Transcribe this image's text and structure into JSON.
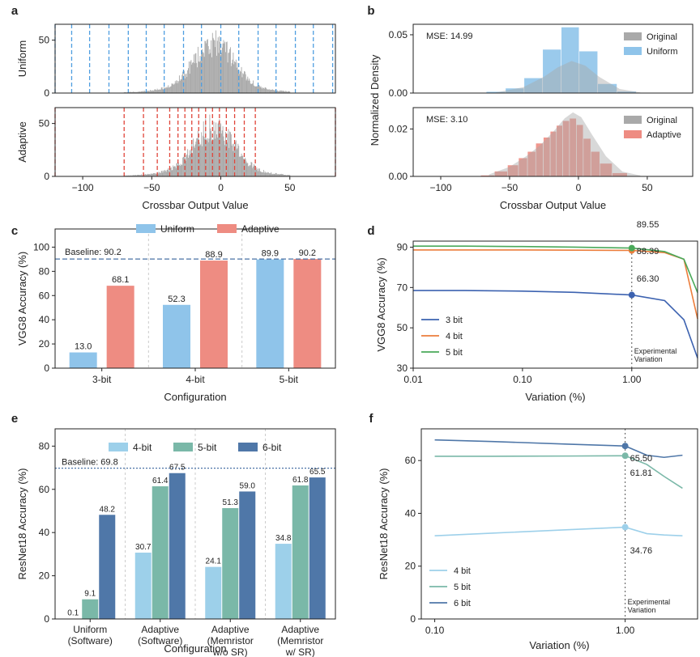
{
  "colors": {
    "uniform": "#4f9ee0",
    "uniform_bar": "#8fc4ea",
    "adaptive": "#e0453a",
    "adaptive_bar": "#ee8c82",
    "original": "#a9a9a9",
    "baseline": "#4a72a6",
    "b3": "#3c62b0",
    "b4": "#ec7d3b",
    "b5": "#4aa95a",
    "rn4": "#9dd0ea",
    "rn5": "#7ab8a8",
    "rn6": "#4f77a8"
  },
  "panels": {
    "a": {
      "label": "a",
      "ylabel_top": "Uniform",
      "ylabel_bottom": "Adaptive",
      "xlabel": "Crossbar Output Value"
    },
    "b": {
      "label": "b",
      "ylabel": "Normalized Density",
      "xlabel": "Crossbar Output Value",
      "mse_top": "MSE: 14.99",
      "mse_bottom": "MSE: 3.10",
      "legend_top": [
        "Original",
        "Uniform"
      ],
      "legend_bottom": [
        "Original",
        "Adaptive"
      ]
    },
    "c": {
      "label": "c",
      "ylabel": "VGG8 Accuracy (%)",
      "xlabel": "Configuration",
      "baseline": "Baseline: 90.2",
      "legend": [
        "Uniform",
        "Adaptive"
      ]
    },
    "d": {
      "label": "d",
      "ylabel": "VGG8 Accuracy (%)",
      "xlabel": "Variation (%)",
      "legend": [
        "3 bit",
        "4 bit",
        "5 bit"
      ],
      "exp_line1": "Experimental",
      "exp_line2": "Variation"
    },
    "e": {
      "label": "e",
      "ylabel": "ResNet18 Accuracy (%)",
      "xlabel": "Configuration",
      "baseline": "Baseline: 69.8",
      "legend": [
        "4-bit",
        "5-bit",
        "6-bit"
      ]
    },
    "f": {
      "label": "f",
      "ylabel": "ResNet18 Accuracy (%)",
      "xlabel": "Variation (%)",
      "legend": [
        "4 bit",
        "5 bit",
        "6 bit"
      ],
      "exp_line1": "Experimental",
      "exp_line2": "Variation"
    }
  },
  "chart_data": [
    {
      "panel": "a-top",
      "type": "bar",
      "title": "",
      "ylabel": "Uniform",
      "xlabel": "",
      "xlim": [
        -120,
        83
      ],
      "ylim": [
        0,
        65
      ],
      "yticks": [
        0,
        50
      ],
      "quantization_levels": [
        -120,
        -108,
        -95,
        -81,
        -67,
        -54,
        -41,
        -27,
        -14,
        0,
        13,
        27,
        40,
        54,
        67,
        81
      ],
      "histogram_peak": 65,
      "histogram_center": -5
    },
    {
      "panel": "a-bottom",
      "type": "bar",
      "title": "",
      "ylabel": "Adaptive",
      "xlabel": "Crossbar Output Value",
      "xlim": [
        -120,
        83
      ],
      "ylim": [
        0,
        65
      ],
      "xticks": [
        -100,
        -50,
        0,
        50
      ],
      "yticks": [
        0,
        50
      ],
      "quantization_levels": [
        -120,
        -70,
        -56,
        -46,
        -37,
        -31,
        -26,
        -21,
        -16,
        -11,
        -6,
        -1,
        4,
        10,
        17,
        25,
        83
      ],
      "histogram_peak": 65,
      "histogram_center": -5
    },
    {
      "panel": "b-top",
      "type": "bar",
      "ylabel": "Normalized Density",
      "xlim": [
        -120,
        83
      ],
      "ylim": [
        0,
        0.059
      ],
      "yticks": [
        0.0,
        0.05
      ],
      "x": [
        -60,
        -46,
        -33,
        -19,
        -6,
        7,
        21,
        35
      ],
      "series": [
        {
          "name": "Uniform",
          "values": [
            0.0013,
            0.0042,
            0.013,
            0.0375,
            0.0566,
            0.036,
            0.008,
            0.0015
          ]
        }
      ],
      "original_curve": {
        "x": [
          -60,
          -40,
          -25,
          -15,
          -5,
          5,
          15,
          30,
          45
        ],
        "y": [
          0.0005,
          0.005,
          0.014,
          0.022,
          0.0275,
          0.0235,
          0.014,
          0.0035,
          0.0005
        ]
      },
      "annotation": "MSE: 14.99"
    },
    {
      "panel": "b-bottom",
      "type": "bar",
      "ylabel": "Normalized Density",
      "xlabel": "Crossbar Output Value",
      "xlim": [
        -120,
        83
      ],
      "ylim": [
        0,
        0.029
      ],
      "xticks": [
        -100,
        -50,
        0,
        50
      ],
      "yticks": [
        0.0,
        0.02
      ],
      "x": [
        -66,
        -56,
        -47,
        -40,
        -34,
        -28,
        -23,
        -18,
        -14,
        -9,
        -4,
        1,
        6,
        12,
        19,
        30
      ],
      "series": [
        {
          "name": "Adaptive",
          "values": [
            0.0005,
            0.0022,
            0.0048,
            0.0078,
            0.0105,
            0.014,
            0.0165,
            0.019,
            0.0215,
            0.0235,
            0.0245,
            0.0218,
            0.016,
            0.0105,
            0.0055,
            0.0015
          ]
        }
      ],
      "original_curve": {
        "x": [
          -65,
          -50,
          -38,
          -28,
          -18,
          -10,
          -4,
          2,
          10,
          20,
          32,
          45
        ],
        "y": [
          0.0008,
          0.004,
          0.0085,
          0.013,
          0.019,
          0.0245,
          0.027,
          0.025,
          0.0175,
          0.0085,
          0.002,
          0.0004
        ]
      },
      "annotation": "MSE: 3.10"
    },
    {
      "panel": "c",
      "type": "bar",
      "ylabel": "VGG8 Accuracy (%)",
      "xlabel": "Configuration",
      "categories": [
        "3-bit",
        "4-bit",
        "5-bit"
      ],
      "series": [
        {
          "name": "Uniform",
          "values": [
            13.0,
            52.3,
            89.9
          ]
        },
        {
          "name": "Adaptive",
          "values": [
            68.1,
            88.9,
            90.2
          ]
        }
      ],
      "ylim": [
        0,
        115
      ],
      "yticks": [
        0,
        20,
        40,
        60,
        80,
        100
      ],
      "baseline": 90.2,
      "legend": "top-center",
      "grid": false
    },
    {
      "panel": "d",
      "type": "line",
      "ylabel": "VGG8 Accuracy (%)",
      "xlabel": "Variation (%)",
      "xscale": "log",
      "xlim": [
        0.01,
        4.0
      ],
      "ylim": [
        30,
        93
      ],
      "xticks": [
        "0.01",
        "0.10",
        "1.00"
      ],
      "yticks": [
        30,
        50,
        70,
        90
      ],
      "series": [
        {
          "name": "3 bit",
          "x": [
            0.01,
            0.03,
            0.1,
            0.3,
            1.0,
            2.0,
            3.0,
            4.0
          ],
          "values": [
            68.5,
            68.5,
            68.2,
            67.6,
            66.3,
            63.5,
            54.0,
            35.0
          ]
        },
        {
          "name": "4 bit",
          "x": [
            0.01,
            0.03,
            0.1,
            0.3,
            1.0,
            2.0,
            3.0,
            4.0
          ],
          "values": [
            88.6,
            88.6,
            88.6,
            88.5,
            88.39,
            87.3,
            84.0,
            54.5
          ]
        },
        {
          "name": "5 bit",
          "x": [
            0.01,
            0.03,
            0.1,
            0.3,
            1.0,
            2.0,
            3.0,
            4.0
          ],
          "values": [
            90.5,
            90.5,
            90.3,
            90.0,
            89.55,
            87.8,
            84.0,
            67.5
          ]
        }
      ],
      "markers": [
        {
          "x": 1.0,
          "label": "89.55"
        },
        {
          "x": 1.0,
          "label": "88.39"
        },
        {
          "x": 1.0,
          "label": "66.30"
        }
      ],
      "vline": 1.0,
      "legend": "lower-left"
    },
    {
      "panel": "e",
      "type": "bar",
      "ylabel": "ResNet18 Accuracy (%)",
      "xlabel": "Configuration",
      "categories": [
        "Uniform (Software)",
        "Adaptive (Software)",
        "Adaptive (Memristor w/o SR)",
        "Adaptive (Memristor w/ SR)"
      ],
      "series": [
        {
          "name": "4-bit",
          "values": [
            0.1,
            30.7,
            24.1,
            34.8
          ]
        },
        {
          "name": "5-bit",
          "values": [
            9.1,
            61.4,
            51.3,
            61.8
          ]
        },
        {
          "name": "6-bit",
          "values": [
            48.2,
            67.5,
            59.0,
            65.5
          ]
        }
      ],
      "ylim": [
        0,
        88
      ],
      "yticks": [
        0,
        20,
        40,
        60,
        80
      ],
      "baseline": 69.8,
      "legend": "top-center",
      "grid": false
    },
    {
      "panel": "f",
      "type": "line",
      "ylabel": "ResNet18 Accuracy (%)",
      "xlabel": "Variation (%)",
      "xscale": "log",
      "xlim": [
        0.085,
        2.4
      ],
      "ylim": [
        0,
        72
      ],
      "xticks": [
        "0.10",
        "1.00"
      ],
      "yticks": [
        0,
        20,
        40,
        60
      ],
      "series": [
        {
          "name": "4 bit",
          "x": [
            0.1,
            0.2,
            0.5,
            1.0,
            1.3,
            1.6,
            2.0
          ],
          "values": [
            31.5,
            32.5,
            33.8,
            34.76,
            32.3,
            31.8,
            31.5
          ]
        },
        {
          "name": "5 bit",
          "x": [
            0.1,
            0.2,
            0.5,
            1.0,
            1.3,
            1.6,
            2.0
          ],
          "values": [
            61.6,
            61.6,
            61.7,
            61.81,
            58.5,
            54.0,
            49.5
          ]
        },
        {
          "name": "6 bit",
          "x": [
            0.1,
            0.2,
            0.5,
            1.0,
            1.3,
            1.6,
            2.0
          ],
          "values": [
            67.8,
            67.2,
            66.2,
            65.5,
            62.0,
            61.2,
            62.0
          ]
        }
      ],
      "markers": [
        {
          "x": 1.0,
          "label": "65.50"
        },
        {
          "x": 1.0,
          "label": "61.81"
        },
        {
          "x": 1.0,
          "label": "34.76"
        }
      ],
      "vline": 1.0,
      "legend": "lower-left"
    }
  ]
}
